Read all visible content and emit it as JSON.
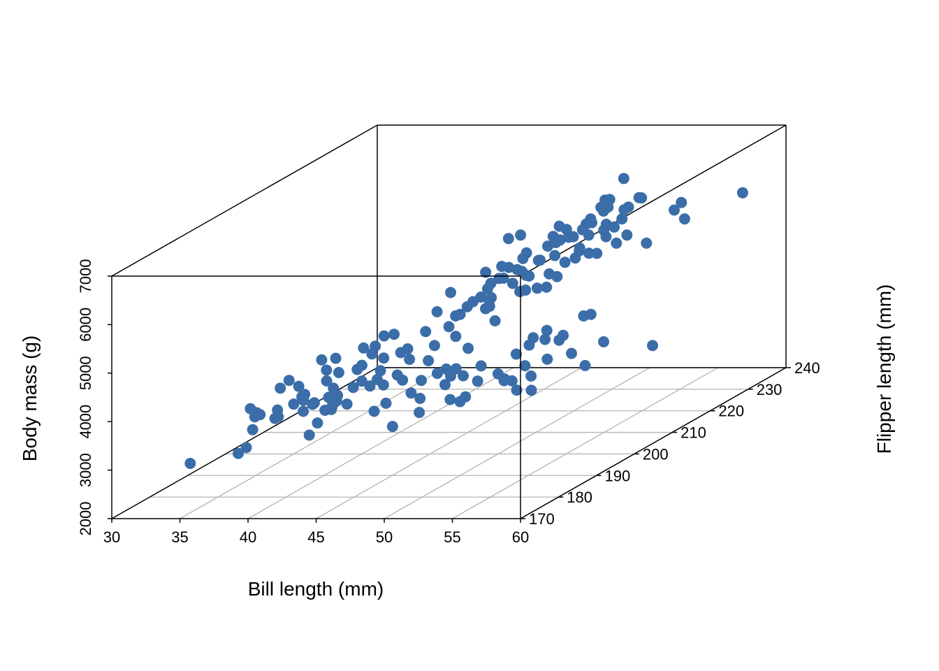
{
  "chart_data": {
    "type": "scatter",
    "subtype": "scatter3d",
    "title": "",
    "xlabel": "Bill length (mm)",
    "ylabel": "Flipper length (mm)",
    "zlabel": "Body mass (g)",
    "xlim": [
      30,
      60
    ],
    "ylim": [
      170,
      240
    ],
    "zlim": [
      2000,
      7000
    ],
    "x_ticks": [
      "30",
      "35",
      "40",
      "45",
      "50",
      "55",
      "60"
    ],
    "y_ticks": [
      "170",
      "180",
      "190",
      "200",
      "210",
      "220",
      "230",
      "240"
    ],
    "z_ticks": [
      "2000",
      "3000",
      "4000",
      "5000",
      "6000",
      "7000"
    ],
    "grid": "floor",
    "box": true,
    "marker_color": "#3B6EA8",
    "grid_color": "#B4B4B4",
    "series": [
      {
        "points": [
          [
            35.2,
            172,
            3050
          ],
          [
            36.5,
            180,
            2900
          ],
          [
            37.0,
            182,
            3300
          ],
          [
            37.8,
            185,
            3400
          ],
          [
            38.2,
            176,
            3200
          ],
          [
            38.5,
            190,
            3550
          ],
          [
            38.9,
            186,
            3650
          ],
          [
            39.1,
            181,
            3750
          ],
          [
            39.3,
            190,
            3500
          ],
          [
            39.5,
            186,
            3800
          ],
          [
            39.8,
            191,
            3300
          ],
          [
            40.2,
            190,
            3950
          ],
          [
            40.3,
            195,
            3250
          ],
          [
            40.6,
            184,
            3100
          ],
          [
            40.9,
            188,
            3700
          ],
          [
            41.1,
            188,
            3450
          ],
          [
            41.4,
            195,
            4050
          ],
          [
            41.5,
            201,
            3000
          ],
          [
            41.8,
            194,
            4450
          ],
          [
            42.0,
            185,
            3650
          ],
          [
            42.2,
            197,
            3850
          ],
          [
            42.5,
            191,
            3900
          ],
          [
            42.7,
            196,
            3600
          ],
          [
            43.1,
            191,
            3800
          ],
          [
            43.2,
            197,
            4600
          ],
          [
            36.0,
            185,
            3600
          ],
          [
            36.8,
            190,
            3800
          ],
          [
            37.3,
            182,
            3650
          ],
          [
            37.6,
            192,
            3750
          ],
          [
            38.0,
            188,
            4050
          ],
          [
            38.6,
            183,
            3525
          ],
          [
            38.8,
            195,
            3950
          ],
          [
            39.0,
            193,
            4250
          ],
          [
            39.6,
            186,
            3500
          ],
          [
            39.7,
            195,
            3900
          ],
          [
            40.0,
            187,
            3600
          ],
          [
            40.1,
            193,
            3400
          ],
          [
            40.5,
            197,
            3875
          ],
          [
            40.8,
            203,
            4300
          ],
          [
            41.0,
            190,
            3650
          ],
          [
            41.3,
            198,
            4150
          ],
          [
            41.6,
            192,
            3725
          ],
          [
            42.3,
            202,
            4000
          ],
          [
            42.8,
            194,
            3800
          ],
          [
            43.5,
            200,
            3950
          ],
          [
            44.0,
            195,
            3850
          ],
          [
            44.5,
            203,
            4100
          ],
          [
            45.0,
            205,
            4400
          ],
          [
            45.5,
            205,
            4200
          ],
          [
            46.0,
            196,
            4100
          ],
          [
            46.2,
            200,
            3750
          ],
          [
            46.5,
            192,
            3500
          ],
          [
            46.8,
            199,
            3650
          ],
          [
            47.0,
            190,
            3300
          ],
          [
            47.5,
            195,
            3650
          ],
          [
            48.0,
            198,
            3700
          ],
          [
            48.5,
            200,
            3500
          ],
          [
            49.0,
            195,
            3400
          ],
          [
            49.5,
            210,
            3800
          ],
          [
            50.0,
            200,
            3650
          ],
          [
            50.5,
            203,
            3925
          ],
          [
            51.0,
            198,
            3600
          ],
          [
            51.5,
            207,
            4050
          ],
          [
            52.0,
            210,
            4000
          ],
          [
            52.5,
            204,
            3775
          ],
          [
            53.0,
            198,
            3400
          ],
          [
            53.5,
            210,
            4400
          ],
          [
            54.0,
            205,
            3850
          ],
          [
            55.0,
            205,
            3600
          ],
          [
            55.8,
            207,
            4000
          ],
          [
            58.0,
            212,
            3700
          ],
          [
            44.2,
            197,
            4300
          ],
          [
            45.2,
            197,
            3650
          ],
          [
            46.1,
            198,
            3750
          ],
          [
            47.6,
            196,
            3300
          ],
          [
            49.2,
            195,
            4400
          ],
          [
            50.8,
            210,
            4100
          ],
          [
            51.7,
            201,
            3775
          ],
          [
            52.2,
            197,
            3450
          ],
          [
            44.8,
            186,
            3500
          ],
          [
            45.8,
            196,
            4700
          ],
          [
            46.4,
            190,
            3700
          ],
          [
            47.2,
            199,
            3800
          ],
          [
            48.2,
            202,
            3725
          ],
          [
            49.8,
            210,
            3950
          ],
          [
            50.2,
            201,
            3500
          ],
          [
            51.3,
            199,
            3550
          ],
          [
            52.7,
            199,
            3650
          ],
          [
            53.2,
            213,
            4300
          ],
          [
            54.2,
            201,
            4300
          ],
          [
            43.3,
            208,
            4575
          ],
          [
            44.1,
            210,
            4400
          ],
          [
            45.1,
            211,
            4650
          ],
          [
            45.4,
            212,
            4700
          ],
          [
            45.9,
            215,
            4950
          ],
          [
            46.3,
            210,
            4550
          ],
          [
            46.6,
            210,
            4600
          ],
          [
            46.9,
            215,
            4850
          ],
          [
            47.3,
            216,
            5050
          ],
          [
            47.7,
            214,
            4725
          ],
          [
            48.1,
            215,
            5000
          ],
          [
            48.4,
            213,
            4800
          ],
          [
            48.7,
            215,
            4750
          ],
          [
            49.1,
            216,
            4725
          ],
          [
            49.3,
            216,
            5000
          ],
          [
            49.6,
            217,
            4900
          ],
          [
            49.9,
            218,
            5150
          ],
          [
            50.1,
            220,
            5150
          ],
          [
            50.4,
            220,
            5300
          ],
          [
            50.7,
            219,
            5400
          ],
          [
            51.1,
            220,
            5250
          ],
          [
            51.4,
            221,
            5200
          ],
          [
            51.8,
            222,
            5500
          ],
          [
            52.1,
            221,
            5800
          ],
          [
            52.4,
            222,
            5700
          ],
          [
            43.6,
            213,
            4300
          ],
          [
            44.4,
            212,
            4500
          ],
          [
            45.3,
            215,
            4850
          ],
          [
            45.6,
            214,
            4600
          ],
          [
            46.1,
            215,
            5200
          ],
          [
            46.4,
            218,
            5000
          ],
          [
            46.8,
            219,
            5300
          ],
          [
            47.4,
            220,
            5100
          ],
          [
            48.2,
            221,
            5550
          ],
          [
            48.6,
            220,
            5200
          ],
          [
            49.4,
            222,
            5500
          ],
          [
            49.8,
            223,
            5600
          ],
          [
            50.2,
            224,
            5700
          ],
          [
            50.5,
            226,
            5850
          ],
          [
            50.8,
            225,
            5500
          ],
          [
            51.3,
            228,
            5600
          ],
          [
            52.5,
            225,
            5400
          ],
          [
            53.4,
            219,
            5500
          ],
          [
            54.3,
            231,
            5650
          ],
          [
            55.1,
            230,
            5850
          ],
          [
            55.9,
            228,
            5600
          ],
          [
            59.6,
            230,
            6050
          ],
          [
            44.5,
            217,
            4650
          ],
          [
            45.2,
            220,
            5550
          ],
          [
            45.7,
            222,
            5050
          ],
          [
            46.5,
            214,
            5000
          ],
          [
            47.2,
            216,
            5800
          ],
          [
            47.8,
            221,
            5350
          ],
          [
            48.5,
            224,
            5400
          ],
          [
            49.0,
            228,
            5600
          ],
          [
            49.5,
            230,
            5900
          ],
          [
            50.0,
            229,
            5800
          ],
          [
            50.4,
            228,
            6000
          ],
          [
            50.9,
            230,
            5700
          ],
          [
            51.5,
            229,
            5800
          ],
          [
            52.0,
            230,
            5950
          ],
          [
            42.9,
            213,
            4750
          ],
          [
            43.8,
            219,
            4900
          ],
          [
            44.9,
            216,
            4450
          ],
          [
            46.2,
            221,
            4750
          ],
          [
            47.0,
            226,
            5200
          ],
          [
            47.6,
            225,
            5300
          ],
          [
            48.9,
            222,
            5650
          ],
          [
            49.7,
            225,
            5400
          ],
          [
            50.6,
            231,
            6300
          ],
          [
            51.9,
            231,
            5900
          ],
          [
            53.1,
            228,
            5100
          ],
          [
            45.5,
            219,
            5000
          ],
          [
            46.7,
            228,
            5450
          ],
          [
            48.4,
            229,
            5450
          ],
          [
            49.2,
            230,
            5750
          ],
          [
            50.3,
            210,
            5550
          ],
          [
            36.6,
            184,
            3475
          ],
          [
            37.2,
            195,
            3450
          ],
          [
            38.1,
            180,
            3700
          ],
          [
            39.2,
            196,
            4150
          ],
          [
            40.7,
            190,
            3800
          ],
          [
            41.2,
            184,
            3350
          ],
          [
            42.1,
            196,
            4400
          ],
          [
            43.0,
            195,
            4200
          ],
          [
            44.1,
            196,
            3700
          ],
          [
            45.6,
            188,
            3100
          ],
          [
            47.0,
            210,
            4300
          ],
          [
            48.6,
            195,
            3300
          ]
        ]
      }
    ]
  }
}
